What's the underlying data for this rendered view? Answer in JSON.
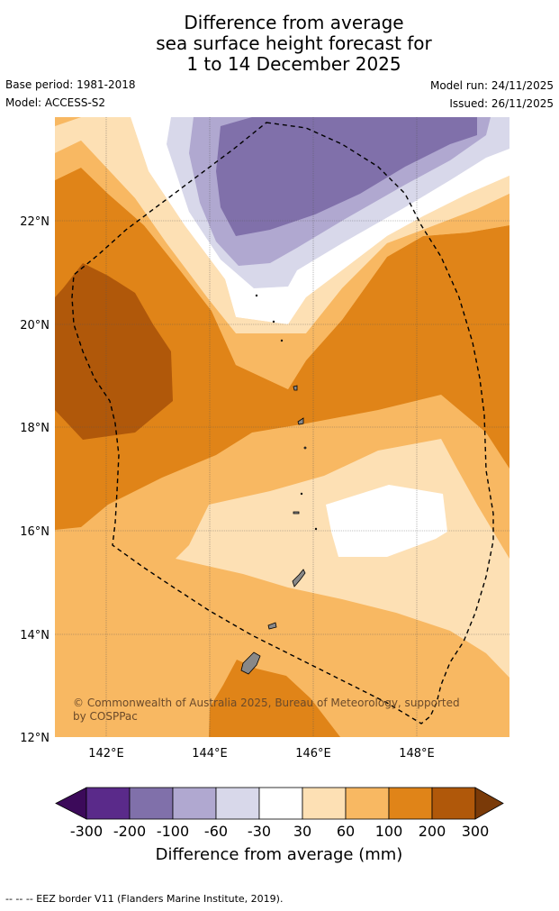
{
  "title": {
    "line1": "Difference from average",
    "line2": "sea surface height forecast for",
    "line3": "1 to 14 December 2025"
  },
  "meta": {
    "base_period": "Base period: 1981-2018",
    "model": "Model: ACCESS-S2",
    "model_run": "Model run: 24/11/2025",
    "issued": "Issued: 26/11/2025"
  },
  "map": {
    "lat_ticks": [
      "22°N",
      "20°N",
      "18°N",
      "16°N",
      "14°N",
      "12°N"
    ],
    "lon_ticks": [
      "142°E",
      "144°E",
      "146°E",
      "148°E"
    ],
    "copyright_line1": "© Commonwealth of Australia 2025, Bureau of Meteorology, supported",
    "copyright_line2": "by COSPPac"
  },
  "colorbar": {
    "labels": [
      "-300",
      "-200",
      "-100",
      "-60",
      "-30",
      "30",
      "60",
      "100",
      "200",
      "300"
    ],
    "colors": [
      "#3c0a5a",
      "#5a2a8a",
      "#8070aa",
      "#b0a8d0",
      "#d8d8ea",
      "#ffffff",
      "#fde0b4",
      "#f8b862",
      "#e08418",
      "#b0580a",
      "#7a3a08"
    ],
    "title": "Difference from average (mm)"
  },
  "footnote": "--  --  -- EEZ border V11 (Flanders Marine Institute, 2019)."
}
